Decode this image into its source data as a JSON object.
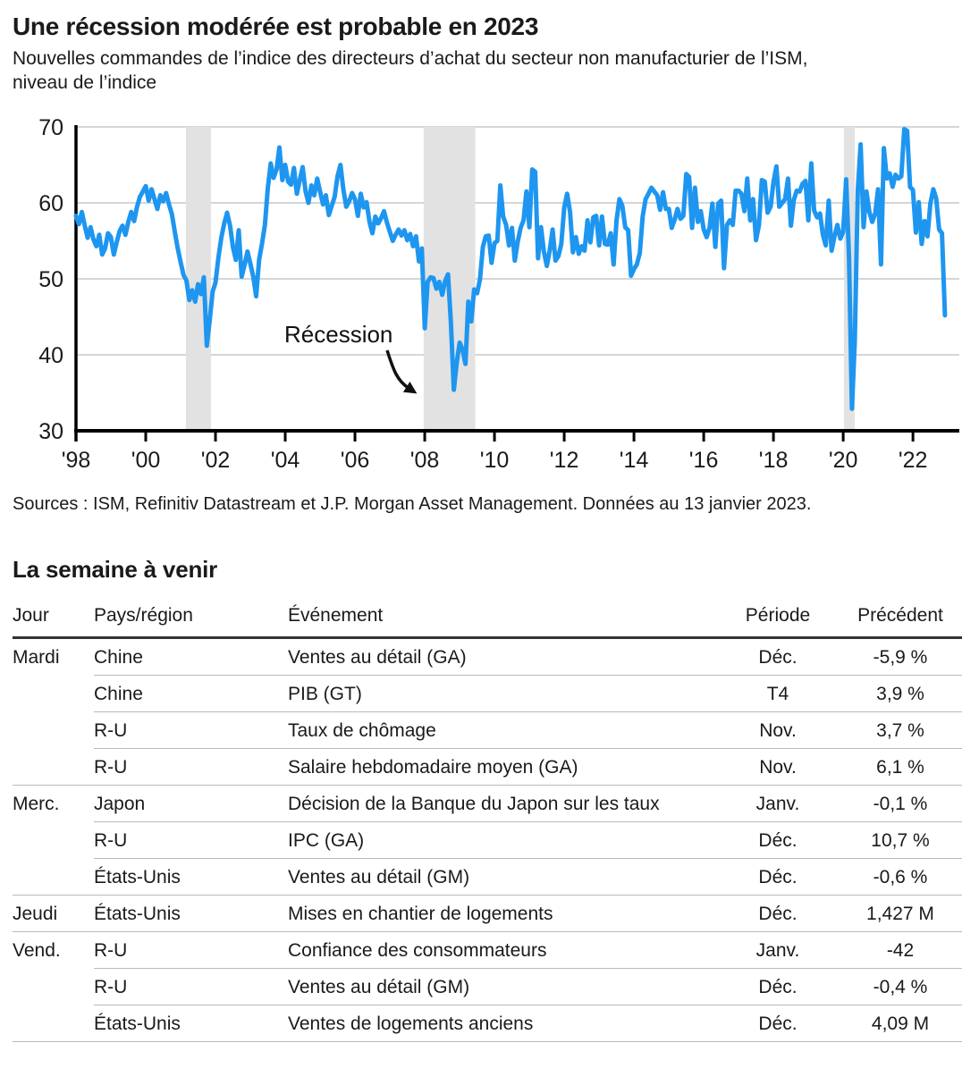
{
  "page": {
    "title": "Une récession modérée est probable en 2023",
    "subtitle_lines": [
      "Nouvelles commandes de l’indice des directeurs d’achat du secteur non manufacturier de l’ISM,",
      "niveau de l’indice"
    ],
    "source": "Sources : ISM, Refinitiv Datastream et J.P. Morgan Asset Management. Données au 13 janvier 2023."
  },
  "chart_data": {
    "type": "line",
    "title": "Une récession modérée est probable en 2023",
    "xlabel": "",
    "ylabel": "niveau de l’indice",
    "ylim": [
      30,
      70
    ],
    "xlim": [
      1998.0,
      2023.33
    ],
    "yticks": [
      30,
      40,
      50,
      60,
      70
    ],
    "gridlines": [
      40,
      50,
      60,
      70
    ],
    "xticks": [
      1998,
      2000,
      2002,
      2004,
      2006,
      2008,
      2010,
      2012,
      2014,
      2016,
      2018,
      2020,
      2022
    ],
    "xtick_labels": [
      "'98",
      "'00",
      "'02",
      "'04",
      "'06",
      "'08",
      "'10",
      "'12",
      "'14",
      "'16",
      "'18",
      "'20",
      "'22"
    ],
    "legend": [],
    "grid": true,
    "annotation": "Récession",
    "line_color": "#1e96f0",
    "band_color": "#e2e2e2",
    "recession_bands": [
      [
        2001.15,
        2001.87
      ],
      [
        2007.97,
        2009.45
      ],
      [
        2020.02,
        2020.33
      ]
    ],
    "x_start": 1998.0,
    "frequency": "monthly",
    "values": [
      58.3,
      57.2,
      58.8,
      57.0,
      55.4,
      56.8,
      55.2,
      54.3,
      55.8,
      53.2,
      54.0,
      56.0,
      55.5,
      53.2,
      54.8,
      56.3,
      57.0,
      55.8,
      57.5,
      58.8,
      57.6,
      59.5,
      60.8,
      61.5,
      62.2,
      60.3,
      61.8,
      60.5,
      59.2,
      61.0,
      60.2,
      61.3,
      59.8,
      58.5,
      56.2,
      54.0,
      52.2,
      50.5,
      49.8,
      47.2,
      48.5,
      47.0,
      49.3,
      48.0,
      50.2,
      41.2,
      44.5,
      48.3,
      49.5,
      52.8,
      55.4,
      57.3,
      58.7,
      57.0,
      54.2,
      52.5,
      56.4,
      50.3,
      51.8,
      53.6,
      52.0,
      50.3,
      47.7,
      52.5,
      54.6,
      57.1,
      61.9,
      65.2,
      63.3,
      64.4,
      67.3,
      63.0,
      65.0,
      62.8,
      62.4,
      64.6,
      61.2,
      63.0,
      64.7,
      61.5,
      60.0,
      62.3,
      61.0,
      63.2,
      61.5,
      59.8,
      61.0,
      58.4,
      59.6,
      60.8,
      63.5,
      65.0,
      61.8,
      59.5,
      60.2,
      61.3,
      60.5,
      58.3,
      61.2,
      59.4,
      60.1,
      57.5,
      56.0,
      58.2,
      57.3,
      58.0,
      58.9,
      57.4,
      56.2,
      55.0,
      55.8,
      56.5,
      55.7,
      56.4,
      55.1,
      55.9,
      54.3,
      55.6,
      52.3,
      54.0,
      43.5,
      49.6,
      50.2,
      50.1,
      48.7,
      49.6,
      47.9,
      49.7,
      50.6,
      44.3,
      35.4,
      38.9,
      41.6,
      40.7,
      38.8,
      47.0,
      44.4,
      48.6,
      48.1,
      49.9,
      54.2,
      55.6,
      55.7,
      52.1,
      54.7,
      55.0,
      62.3,
      58.2,
      57.1,
      54.4,
      56.7,
      52.4,
      54.9,
      56.7,
      57.7,
      61.5,
      56.8,
      64.4,
      64.1,
      52.7,
      56.8,
      53.6,
      51.7,
      53.7,
      56.5,
      52.4,
      53.0,
      54.6,
      59.4,
      61.2,
      58.8,
      53.5,
      55.5,
      53.3,
      54.3,
      53.7,
      57.7,
      54.8,
      58.1,
      58.3,
      54.4,
      58.2,
      54.6,
      54.5,
      56.0,
      51.9,
      57.7,
      60.5,
      59.6,
      56.8,
      56.4,
      50.4,
      51.3,
      51.9,
      53.4,
      58.2,
      60.5,
      61.2,
      62.0,
      61.5,
      61.0,
      59.1,
      61.4,
      59.2,
      59.2,
      56.7,
      57.8,
      59.2,
      57.9,
      58.3,
      63.8,
      63.4,
      56.7,
      62.0,
      57.5,
      58.9,
      56.5,
      55.5,
      56.7,
      59.9,
      54.2,
      59.9,
      60.3,
      51.4,
      57.1,
      57.7,
      57.1,
      61.6,
      61.6,
      61.2,
      58.9,
      63.2,
      57.7,
      60.5,
      55.1,
      57.1,
      63.0,
      62.8,
      58.7,
      59.5,
      62.7,
      64.8,
      59.5,
      60.0,
      60.5,
      63.2,
      57.0,
      60.4,
      61.6,
      61.5,
      62.5,
      62.9,
      57.7,
      65.2,
      59.0,
      58.1,
      58.6,
      55.8,
      54.4,
      60.3,
      53.7,
      55.6,
      57.1,
      55.3,
      56.2,
      63.1,
      52.9,
      32.9,
      41.9,
      61.6,
      67.7,
      56.8,
      61.5,
      58.8,
      57.5,
      58.6,
      61.8,
      51.9,
      67.2,
      63.2,
      63.9,
      62.1,
      63.7,
      63.2,
      63.5,
      69.7,
      69.5,
      62.1,
      61.7,
      56.1,
      60.1,
      54.6,
      57.6,
      55.6,
      59.9,
      61.8,
      60.6,
      56.5,
      56.0,
      45.2
    ]
  },
  "week_ahead": {
    "title": "La semaine à venir",
    "columns": [
      "Jour",
      "Pays/région",
      "Événement",
      "Période",
      "Précédent"
    ],
    "rows": [
      {
        "day": "Mardi",
        "region": "Chine",
        "event": "Ventes au détail (GA)",
        "period": "Déc.",
        "previous": "-5,9 %",
        "group": true
      },
      {
        "day": "",
        "region": "Chine",
        "event": "PIB (GT)",
        "period": "T4",
        "previous": "3,9 %",
        "group": false
      },
      {
        "day": "",
        "region": "R-U",
        "event": "Taux de chômage",
        "period": "Nov.",
        "previous": "3,7 %",
        "group": false
      },
      {
        "day": "",
        "region": "R-U",
        "event": "Salaire hebdomadaire moyen (GA)",
        "period": "Nov.",
        "previous": "6,1 %",
        "group": false
      },
      {
        "day": "Merc.",
        "region": "Japon",
        "event": "Décision de la Banque du Japon sur les taux",
        "period": "Janv.",
        "previous": "-0,1 %",
        "group": true
      },
      {
        "day": "",
        "region": "R-U",
        "event": "IPC (GA)",
        "period": "Déc.",
        "previous": "10,7 %",
        "group": false
      },
      {
        "day": "",
        "region": "États-Unis",
        "event": "Ventes au détail (GM)",
        "period": "Déc.",
        "previous": "-0,6 %",
        "group": false
      },
      {
        "day": "Jeudi",
        "region": "États-Unis",
        "event": "Mises en chantier de logements",
        "period": "Déc.",
        "previous": "1,427 M",
        "group": true
      },
      {
        "day": "Vend.",
        "region": "R-U",
        "event": "Confiance des consommateurs",
        "period": "Janv.",
        "previous": "-42",
        "group": true
      },
      {
        "day": "",
        "region": "R-U",
        "event": "Ventes au détail (GM)",
        "period": "Déc.",
        "previous": "-0,4 %",
        "group": false
      },
      {
        "day": "",
        "region": "États-Unis",
        "event": "Ventes de logements anciens",
        "period": "Déc.",
        "previous": "4,09 M",
        "group": false
      }
    ]
  }
}
